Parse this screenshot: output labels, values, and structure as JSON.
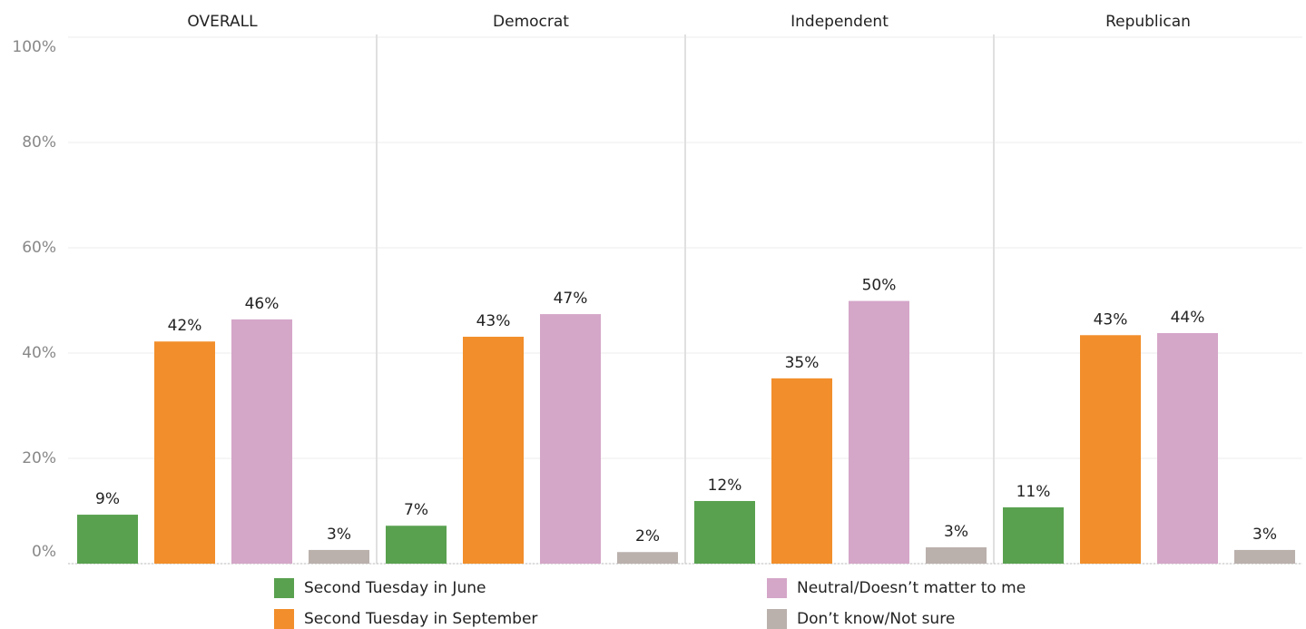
{
  "chart_data": {
    "type": "bar",
    "categories": [
      "OVERALL",
      "Democrat",
      "Independent",
      "Republican"
    ],
    "series": [
      {
        "name": "Second Tuesday in June",
        "color": "#59a14f",
        "values": [
          9.3,
          7.2,
          11.9,
          10.7
        ],
        "value_labels": [
          "9%",
          "7%",
          "12%",
          "11%"
        ]
      },
      {
        "name": "Second Tuesday in September",
        "color": "#f28e2b",
        "values": [
          42.2,
          43.1,
          35.2,
          43.4
        ],
        "value_labels": [
          "42%",
          "43%",
          "35%",
          "43%"
        ]
      },
      {
        "name": "Neutral/Doesn’t matter to me",
        "color": "#d4a6c8",
        "values": [
          46.4,
          47.4,
          49.9,
          43.8
        ],
        "value_labels": [
          "46%",
          "47%",
          "50%",
          "44%"
        ]
      },
      {
        "name": "Don’t know/Not sure",
        "color": "#bab0ac",
        "values": [
          2.6,
          2.2,
          3.1,
          2.6
        ],
        "value_labels": [
          "3%",
          "2%",
          "3%",
          "3%"
        ]
      }
    ],
    "ylim": [
      0,
      100
    ],
    "yticks": [
      {
        "value": 0,
        "label": "0%"
      },
      {
        "value": 20,
        "label": "20%"
      },
      {
        "value": 40,
        "label": "40%"
      },
      {
        "value": 60,
        "label": "60%"
      },
      {
        "value": 80,
        "label": "80%"
      },
      {
        "value": 100,
        "label": "100%"
      }
    ],
    "grid": true
  }
}
